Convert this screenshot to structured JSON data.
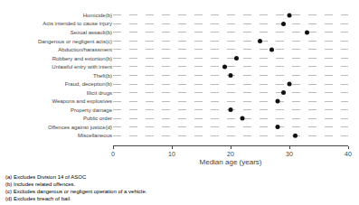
{
  "chart_data": {
    "type": "dot",
    "categories": [
      "Homicide(b)",
      "Acts intended to cause injury",
      "Sexual assault(b)",
      "Dangerous or negligent acts(c)",
      "Abduction/harassment",
      "Robbery and extortion(b)",
      "Unlawful entry with intent",
      "Theft(b)",
      "Fraud, deception(b)",
      "Illicit drugs",
      "Weapons and explosives",
      "Property damage",
      "Public order",
      "Offences against justice(d)",
      "Miscellaneous"
    ],
    "values": [
      30,
      29,
      33,
      25,
      27,
      21,
      19,
      20,
      30,
      29,
      28,
      20,
      22,
      28,
      31
    ],
    "xlabel": "Median age (years)",
    "xlim": [
      0,
      40
    ],
    "xticks": [
      0,
      10,
      20,
      30,
      40
    ],
    "color": "#111111",
    "marker": "circle",
    "grid": true,
    "annotations": [
      "(a) Excludes Division 14 of ASOC",
      "(b) Includes related offences.",
      "(c) Excludes dangerous or negligent operation of a vehicle.",
      "(d) Excludes breach of bail."
    ]
  }
}
